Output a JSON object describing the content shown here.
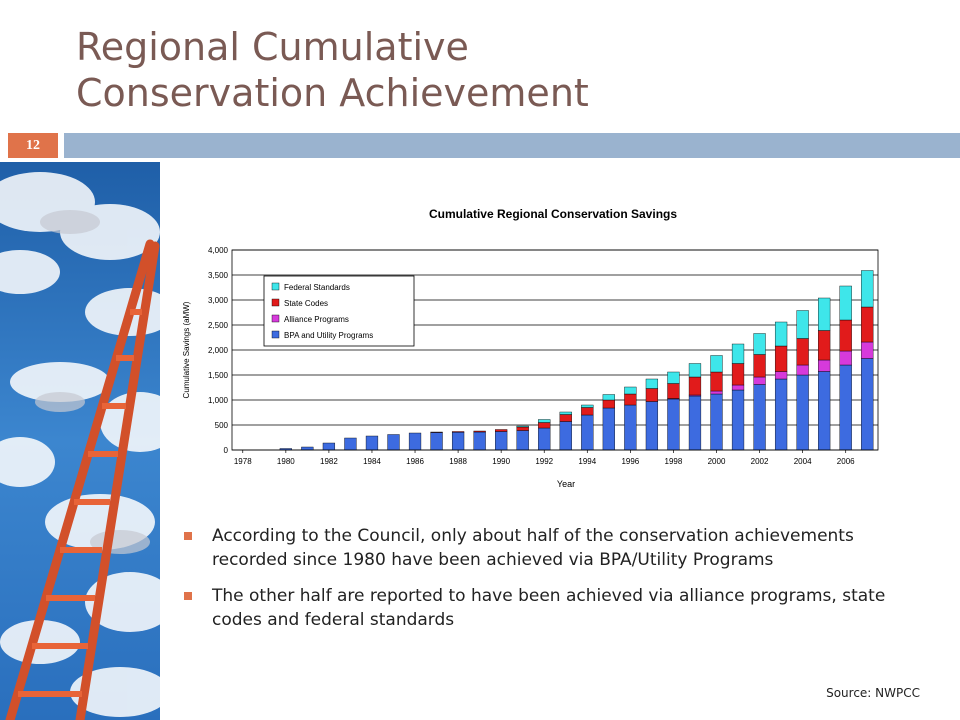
{
  "slide": {
    "title_line1": "Regional Cumulative",
    "title_line2": "Conservation Achievement",
    "number": "12",
    "bullets": [
      "According to the Council, only about half of the conservation achievements recorded since 1980 have been achieved via BPA/Utility Programs",
      "The other half are reported to have been achieved via alliance programs, state codes and federal standards"
    ],
    "source": "Source:  NWPCC"
  },
  "colors": {
    "title": "#7a5a54",
    "accent_orange": "#e0734a",
    "header_bar": "#9ab3cf",
    "bpa": "#3d6be0",
    "alliance": "#d63adb",
    "state": "#e11b1b",
    "federal": "#3ee6ea"
  },
  "chart_data": {
    "type": "bar",
    "stacked": true,
    "title": "Cumulative Regional Conservation Savings",
    "xlabel": "Year",
    "ylabel": "Cumulative Savings (aMW)",
    "ylim": [
      0,
      4000
    ],
    "yticks": [
      "0",
      "500",
      "1,000",
      "1,500",
      "2,000",
      "2,500",
      "3,000",
      "3,500",
      "4,000"
    ],
    "xtick_labels": [
      "1978",
      "1980",
      "1982",
      "1984",
      "1986",
      "1988",
      "1990",
      "1992",
      "1994",
      "1996",
      "1998",
      "2000",
      "2002",
      "2004",
      "2006"
    ],
    "grid": "horizontal",
    "legend_position": "upper-left",
    "categories": [
      "1978",
      "1979",
      "1980",
      "1981",
      "1982",
      "1983",
      "1984",
      "1985",
      "1986",
      "1987",
      "1988",
      "1989",
      "1990",
      "1991",
      "1992",
      "1993",
      "1994",
      "1995",
      "1996",
      "1997",
      "1998",
      "1999",
      "2000",
      "2001",
      "2002",
      "2003",
      "2004",
      "2005",
      "2006",
      "2007"
    ],
    "series": [
      {
        "name": "BPA and Utility Programs",
        "color": "#3d6be0",
        "values": [
          0,
          0,
          30,
          60,
          140,
          240,
          280,
          310,
          340,
          350,
          355,
          360,
          370,
          390,
          440,
          570,
          700,
          840,
          900,
          970,
          1020,
          1080,
          1120,
          1200,
          1310,
          1420,
          1500,
          1570,
          1700,
          1830
        ]
      },
      {
        "name": "Alliance Programs",
        "color": "#d63adb",
        "values": [
          0,
          0,
          0,
          0,
          0,
          0,
          0,
          0,
          0,
          0,
          0,
          0,
          0,
          0,
          0,
          0,
          0,
          0,
          0,
          0,
          10,
          20,
          60,
          100,
          150,
          150,
          200,
          230,
          280,
          330
        ]
      },
      {
        "name": "State Codes",
        "color": "#e11b1b",
        "values": [
          0,
          0,
          0,
          0,
          0,
          0,
          0,
          0,
          0,
          10,
          15,
          20,
          40,
          70,
          110,
          140,
          150,
          160,
          220,
          260,
          300,
          360,
          380,
          430,
          450,
          510,
          530,
          590,
          620,
          700
        ]
      },
      {
        "name": "Federal Standards",
        "color": "#3ee6ea",
        "values": [
          0,
          0,
          0,
          0,
          0,
          0,
          0,
          0,
          0,
          0,
          0,
          0,
          0,
          20,
          60,
          50,
          50,
          110,
          140,
          190,
          230,
          270,
          330,
          390,
          420,
          480,
          560,
          650,
          680,
          730
        ]
      }
    ]
  }
}
